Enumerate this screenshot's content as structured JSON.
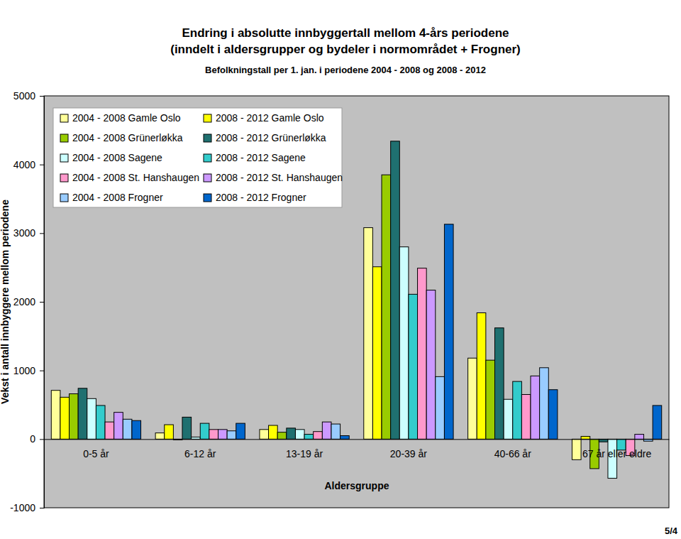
{
  "chart_data": {
    "type": "bar",
    "title": [
      "Endring i absolutte innbyggertall mellom 4-års periodene",
      "(inndelt i aldersgrupper og bydeler i normområdet + Frogner)"
    ],
    "subtitle": "Befolkningstall per 1. jan. i periodene 2004 - 2008 og 2008 - 2012",
    "x_label": "Aldersgruppe",
    "y_label": "Vekst i antall innbyggere mellom periodene",
    "annotations": [
      "5/4"
    ],
    "categories": [
      "0-5 år",
      "6-12 år",
      "13-19 år",
      "20-39 år",
      "40-66 år",
      "67 år eller eldre"
    ],
    "series": [
      {
        "name": "2004 - 2008 Gamle Oslo",
        "color": "#ffff99",
        "values": [
          710,
          90,
          140,
          3080,
          1180,
          -300
        ]
      },
      {
        "name": "2008 - 2012 Gamle Oslo",
        "color": "#ffff00",
        "values": [
          610,
          210,
          200,
          2510,
          1840,
          40
        ]
      },
      {
        "name": "2004 - 2008 Grünerløkka",
        "color": "#99cc00",
        "values": [
          660,
          -10,
          100,
          3850,
          1150,
          -430
        ]
      },
      {
        "name": "2008 - 2012 Grünerløkka",
        "color": "#1f7070",
        "values": [
          740,
          320,
          160,
          4340,
          1620,
          -40
        ]
      },
      {
        "name": "2004 - 2008 Sagene",
        "color": "#ccffff",
        "values": [
          590,
          30,
          140,
          2800,
          580,
          -570
        ]
      },
      {
        "name": "2008 - 2012 Sagene",
        "color": "#33cccc",
        "values": [
          490,
          230,
          70,
          2110,
          840,
          -160
        ]
      },
      {
        "name": "2004 - 2008 St. Hanshaugen",
        "color": "#ff99cc",
        "values": [
          250,
          140,
          110,
          2490,
          650,
          -240
        ]
      },
      {
        "name": "2008 - 2012 St. Hanshaugen",
        "color": "#cc99ff",
        "values": [
          390,
          140,
          250,
          2170,
          920,
          70
        ]
      },
      {
        "name": "2004 - 2008 Frogner",
        "color": "#99ccff",
        "values": [
          290,
          120,
          220,
          910,
          1040,
          -30
        ]
      },
      {
        "name": "2008 - 2012 Frogner",
        "color": "#0066cc",
        "values": [
          270,
          230,
          50,
          3130,
          720,
          490
        ]
      }
    ],
    "ylim": [
      -1000,
      5000
    ],
    "yticks": [
      -1000,
      0,
      1000,
      2000,
      3000,
      4000,
      5000
    ],
    "grid": false,
    "legend": "top-left"
  }
}
